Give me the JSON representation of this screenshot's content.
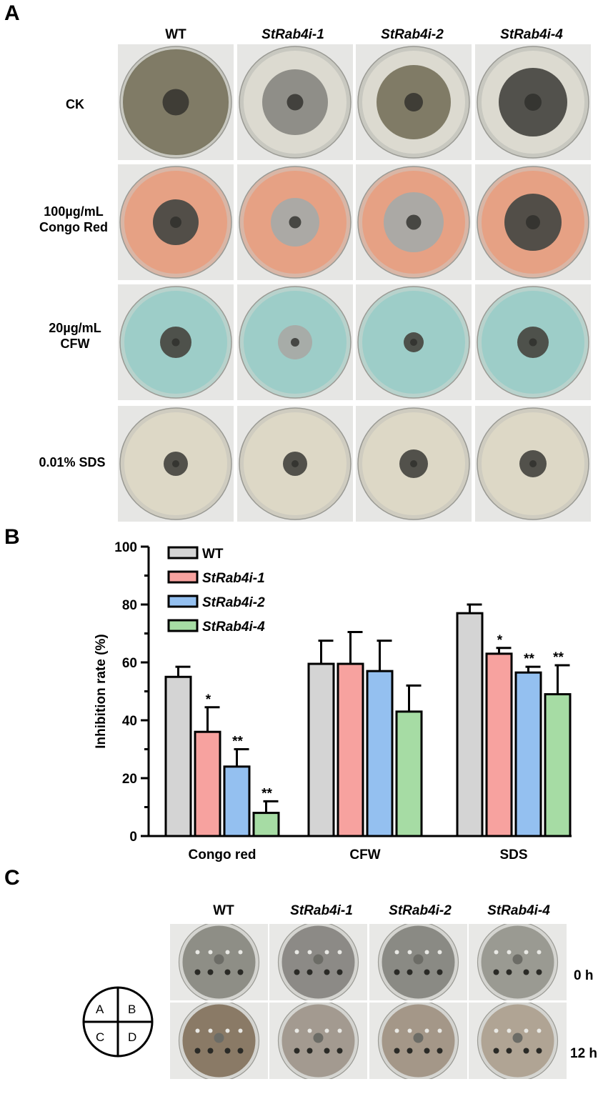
{
  "panels": {
    "a": "A",
    "b": "B",
    "c": "C"
  },
  "panel_a": {
    "columns": [
      {
        "label": "WT",
        "italic": false
      },
      {
        "label": "StRab4i-1",
        "italic": true
      },
      {
        "label": "StRab4i-2",
        "italic": true
      },
      {
        "label": "StRab4i-4",
        "italic": true
      }
    ],
    "rows": [
      {
        "label_line1": "CK",
        "label_line2": "",
        "medium": "#dcdad0",
        "rim": "#c8c8c0"
      },
      {
        "label_line1": "100µg/mL",
        "label_line2": "Congo Red",
        "medium": "#e6a184",
        "rim": "#d9b6a6"
      },
      {
        "label_line1": "20µg/mL",
        "label_line2": "CFW",
        "medium": "#9dcdc8",
        "rim": "#b8d2cc"
      },
      {
        "label_line1": "0.01% SDS",
        "label_line2": "",
        "medium": "#ddd8c6",
        "rim": "#cfccc0"
      }
    ],
    "colony_colors": {
      "dark": "#4a4a44",
      "grey": "#8a8a84",
      "olive": "#7a7660",
      "light_grey": "#a8aaa6"
    }
  },
  "chart_data": {
    "type": "bar",
    "categories": [
      "Congo red",
      "CFW",
      "SDS"
    ],
    "ylabel": "Inhibition rate (%)",
    "xlabel": "",
    "ylim": [
      0,
      100
    ],
    "yticks": [
      0,
      20,
      40,
      60,
      80,
      100
    ],
    "legend_position": "top-left",
    "series": [
      {
        "name": "WT",
        "italic": false,
        "color": "#d4d4d4",
        "values": [
          55,
          59.5,
          77
        ],
        "errors": [
          3.5,
          8,
          3
        ],
        "sig": [
          "",
          "",
          ""
        ]
      },
      {
        "name": "StRab4i-1",
        "italic": true,
        "color": "#f7a29f",
        "values": [
          36,
          59.5,
          63
        ],
        "errors": [
          8.5,
          11,
          2
        ],
        "sig": [
          "*",
          "",
          "*"
        ]
      },
      {
        "name": "StRab4i-2",
        "italic": true,
        "color": "#94c0f0",
        "values": [
          24,
          57,
          56.5
        ],
        "errors": [
          6,
          10.5,
          2
        ],
        "sig": [
          "**",
          "",
          "**"
        ]
      },
      {
        "name": "StRab4i-4",
        "italic": true,
        "color": "#a6dca4",
        "values": [
          8,
          43,
          49
        ],
        "errors": [
          4,
          9,
          10
        ],
        "sig": [
          "**",
          "",
          "**"
        ]
      }
    ]
  },
  "panel_c": {
    "columns": [
      {
        "label": "WT",
        "italic": false
      },
      {
        "label": "StRab4i-1",
        "italic": true
      },
      {
        "label": "StRab4i-2",
        "italic": true
      },
      {
        "label": "StRab4i-4",
        "italic": true
      }
    ],
    "rows": [
      "0 h",
      "12 h"
    ],
    "quadrants": [
      "A",
      "B",
      "C",
      "D"
    ]
  }
}
